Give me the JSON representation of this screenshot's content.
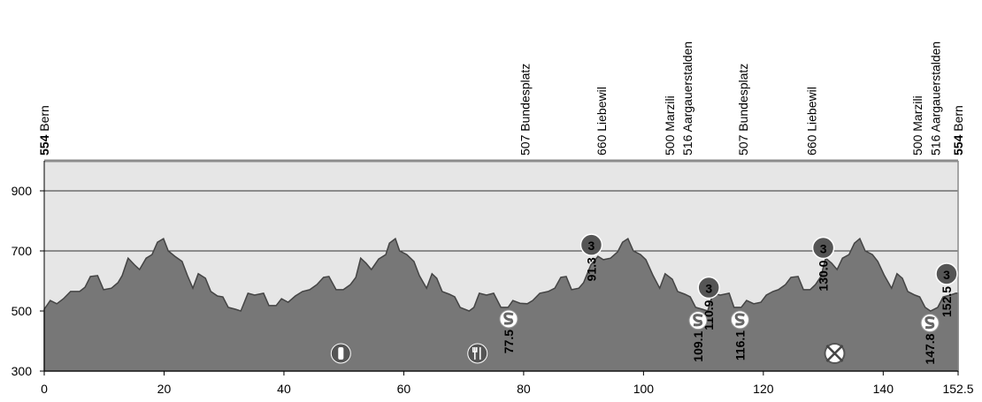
{
  "chart_data": {
    "type": "area",
    "x": [
      0,
      1.0,
      2.1,
      3.2,
      4.4,
      5.9,
      6.8,
      7.7,
      8.9,
      9.9,
      11.2,
      12.3,
      13.0,
      14.0,
      15.1,
      15.9,
      17.0,
      18.0,
      18.9,
      19.9,
      20.7,
      21.8,
      23.0,
      23.9,
      24.8,
      25.7,
      26.9,
      27.8,
      28.9,
      29.8,
      30.7,
      31.9,
      32.8,
      34.0,
      35.1,
      36.6,
      37.5,
      38.7,
      39.6,
      40.7,
      41.9,
      43.1,
      44.3,
      45.5,
      46.6,
      47.5,
      48.7,
      49.9,
      51.1,
      52.0,
      52.8,
      53.7,
      54.6,
      55.8,
      57.0,
      57.6,
      58.6,
      59.3,
      60.5,
      61.7,
      62.6,
      63.8,
      64.7,
      65.5,
      66.4,
      67.6,
      68.5,
      69.4,
      70.9,
      71.7,
      72.6,
      73.8,
      75.0,
      76.2,
      77.4,
      78.2,
      79.4,
      80.6,
      81.5,
      82.7,
      84.1,
      85.2,
      86.2,
      87.1,
      88.0,
      89.2,
      90.0,
      91.2,
      92.4,
      93.3,
      94.5,
      95.7,
      96.5,
      97.4,
      98.3,
      99.5,
      100.4,
      101.6,
      102.7,
      103.6,
      104.8,
      105.7,
      106.9,
      107.8,
      108.7,
      109.8,
      110.7,
      111.6,
      112.8,
      114.3,
      115.1,
      116.3,
      117.2,
      118.4,
      119.6,
      120.5,
      121.6,
      122.5,
      123.7,
      124.6,
      125.8,
      126.7,
      127.8,
      128.7,
      129.6,
      130.4,
      131.4,
      132.3,
      133.2,
      134.3,
      135.2,
      136.1,
      137.0,
      138.2,
      139.1,
      140.2,
      141.4,
      142.3,
      143.2,
      144.1,
      145.3,
      146.1,
      147.0,
      147.9,
      149.1,
      150.0,
      151.2,
      152.1,
      152.5
    ],
    "values": [
      506,
      535,
      524,
      541,
      565,
      565,
      579,
      615,
      618,
      571,
      576,
      594,
      618,
      676,
      653,
      638,
      676,
      688,
      729,
      741,
      700,
      682,
      665,
      618,
      576,
      624,
      609,
      565,
      550,
      547,
      512,
      506,
      500,
      559,
      553,
      559,
      518,
      518,
      541,
      529,
      550,
      565,
      571,
      588,
      612,
      615,
      571,
      571,
      588,
      612,
      676,
      659,
      638,
      673,
      688,
      726,
      741,
      700,
      688,
      665,
      618,
      576,
      624,
      609,
      565,
      556,
      547,
      512,
      500,
      512,
      559,
      553,
      559,
      512,
      512,
      535,
      526,
      524,
      535,
      559,
      565,
      576,
      612,
      615,
      571,
      576,
      594,
      653,
      682,
      671,
      676,
      697,
      729,
      741,
      700,
      688,
      671,
      618,
      576,
      624,
      606,
      565,
      556,
      547,
      512,
      506,
      500,
      559,
      553,
      559,
      512,
      512,
      535,
      524,
      529,
      553,
      565,
      571,
      588,
      612,
      615,
      571,
      571,
      588,
      615,
      676,
      659,
      638,
      676,
      688,
      726,
      741,
      700,
      688,
      665,
      618,
      576,
      624,
      609,
      565,
      553,
      547,
      512,
      500,
      512,
      547,
      553,
      559,
      559
    ],
    "color": "#777777",
    "xlim": [
      0,
      152.5
    ],
    "ylim": [
      300,
      1000
    ],
    "xticks": [
      0,
      20,
      40,
      60,
      80,
      100,
      120,
      140,
      152.5
    ],
    "yticks": [
      300,
      500,
      700,
      900
    ],
    "grid": true,
    "waypoints": [
      {
        "km": 0,
        "altitude": 554,
        "name": "Bern",
        "emphasis": true
      },
      {
        "km": 80.2,
        "altitude": 507,
        "name": "Bundesplatz"
      },
      {
        "km": 93.0,
        "altitude": 660,
        "name": "Liebewil"
      },
      {
        "km": 104.4,
        "altitude": 500,
        "name": "Marzili"
      },
      {
        "km": 107.3,
        "altitude": 516,
        "name": "Aargauerstalden"
      },
      {
        "km": 116.6,
        "altitude": 507,
        "name": "Bundesplatz"
      },
      {
        "km": 128.1,
        "altitude": 660,
        "name": "Liebewil"
      },
      {
        "km": 145.7,
        "altitude": 500,
        "name": "Marzili"
      },
      {
        "km": 148.7,
        "altitude": 516,
        "name": "Aargauerstalden"
      },
      {
        "km": 152.5,
        "altitude": 554,
        "name": "Bern",
        "emphasis": true
      }
    ],
    "climbs": [
      {
        "km": 91.3,
        "category": 3
      },
      {
        "km": 110.9,
        "category": 3
      },
      {
        "km": 130.0,
        "label": "130.0",
        "category": 3
      },
      {
        "km": 152.5,
        "category": 3
      }
    ],
    "sprints": [
      {
        "km": 77.5
      },
      {
        "km": 109.1
      },
      {
        "km": 116.1
      },
      {
        "km": 147.8
      }
    ],
    "services": [
      {
        "type": "drink",
        "km": 49.5
      },
      {
        "type": "food",
        "km": 72.3
      },
      {
        "type": "no-litter",
        "km": 131.9
      }
    ]
  }
}
